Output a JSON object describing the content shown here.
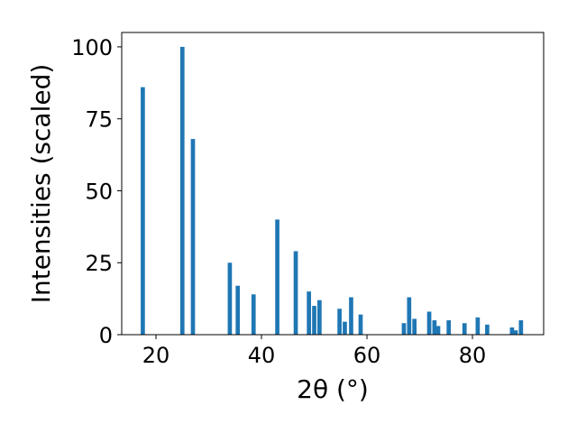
{
  "chart_data": {
    "type": "bar",
    "xlabel": "2θ (°)",
    "ylabel": "Intensities (scaled)",
    "xlim": [
      13.5,
      93.5
    ],
    "ylim": [
      0,
      105
    ],
    "x_ticks": [
      20,
      40,
      60,
      80
    ],
    "y_ticks": [
      0,
      25,
      50,
      75,
      100
    ],
    "bar_width_deg": 0.8,
    "bar_color": "#1f77b4",
    "grid": false,
    "series": [
      {
        "x": [
          17.5,
          25.0,
          27.0,
          34.0,
          35.5,
          38.5,
          43.0,
          46.5,
          49.0,
          50.0,
          51.0,
          54.8,
          55.8,
          57.0,
          58.8,
          67.0,
          68.0,
          69.0,
          71.8,
          72.8,
          73.5,
          75.5,
          78.5,
          81.0,
          82.8,
          87.5,
          88.2,
          89.2
        ],
        "values": [
          86,
          100,
          68,
          25,
          17,
          14,
          40,
          29,
          15,
          10,
          12,
          9,
          4.5,
          13,
          7,
          4,
          13,
          5.5,
          8,
          5,
          3,
          5,
          4,
          6,
          3.5,
          2.5,
          1.5,
          5
        ]
      }
    ]
  }
}
